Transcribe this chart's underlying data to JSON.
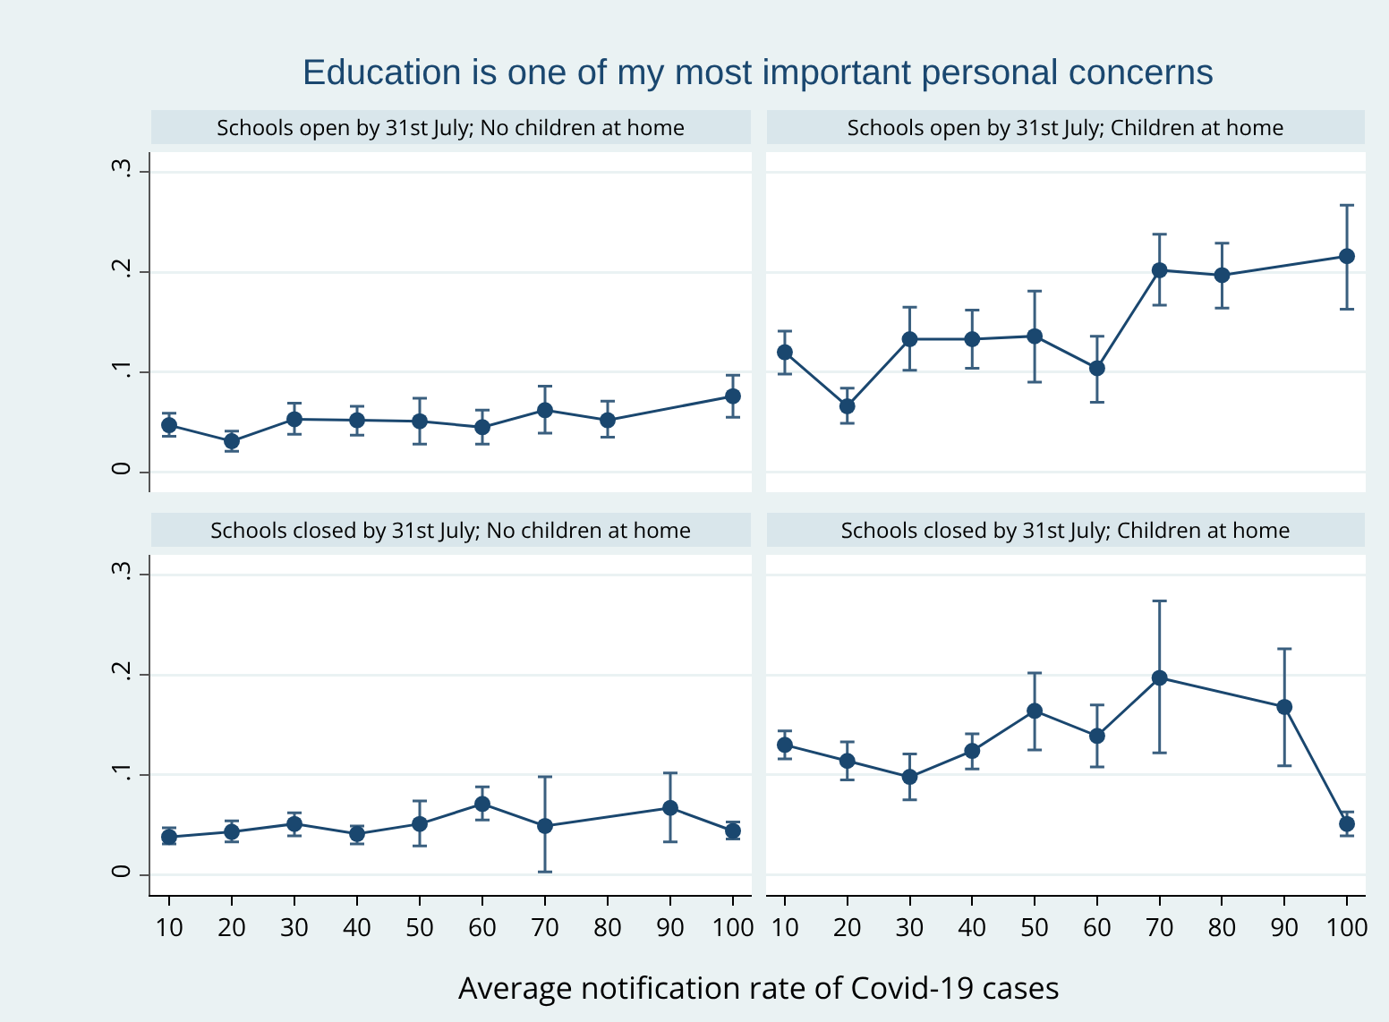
{
  "chart_data": [
    {
      "type": "line",
      "title": "Schools open by 31st July; No children at home",
      "annotations": [
        "Education is one of my most important personal concerns"
      ],
      "x": [
        10,
        20,
        30,
        40,
        50,
        60,
        70,
        80,
        100
      ],
      "values": [
        0.047,
        0.031,
        0.053,
        0.052,
        0.051,
        0.045,
        0.062,
        0.052,
        0.076
      ],
      "errors": [
        [
          0.036,
          0.059
        ],
        [
          0.021,
          0.041
        ],
        [
          0.038,
          0.069
        ],
        [
          0.037,
          0.066
        ],
        [
          0.028,
          0.074
        ],
        [
          0.028,
          0.062
        ],
        [
          0.039,
          0.086
        ],
        [
          0.035,
          0.071
        ],
        [
          0.055,
          0.097
        ]
      ],
      "color": "#1a476f",
      "marker": "circle",
      "xlim": [
        7,
        103
      ],
      "ylim": [
        -0.02,
        0.32
      ],
      "yticks": [
        0,
        {
          "value": 0.1,
          "label": ".1"
        },
        {
          "value": 0.2,
          "label": ".2"
        },
        {
          "value": 0.3,
          "label": ".3"
        }
      ],
      "grid": "y",
      "tick_labels": "y"
    },
    {
      "type": "line",
      "title": "Schools open by 31st July; Children at home",
      "x": [
        10,
        20,
        30,
        40,
        50,
        60,
        70,
        80,
        100
      ],
      "values": [
        0.12,
        0.066,
        0.133,
        0.133,
        0.136,
        0.104,
        0.202,
        0.197,
        0.216
      ],
      "errors": [
        [
          0.098,
          0.141
        ],
        [
          0.049,
          0.084
        ],
        [
          0.102,
          0.165
        ],
        [
          0.104,
          0.162
        ],
        [
          0.09,
          0.181
        ],
        [
          0.07,
          0.136
        ],
        [
          0.167,
          0.238
        ],
        [
          0.164,
          0.229
        ],
        [
          0.163,
          0.267
        ]
      ],
      "color": "#1a476f",
      "marker": "circle",
      "xlim": [
        7,
        103
      ],
      "ylim": [
        -0.02,
        0.32
      ],
      "yticks": [
        {
          "value": 0,
          "label": null
        },
        {
          "value": 0.1,
          "label": null
        },
        {
          "value": 0.2,
          "label": null
        },
        {
          "value": 0.3,
          "label": null
        }
      ],
      "grid": "y",
      "tick_labels": false
    },
    {
      "type": "line",
      "title": "Schools closed by 31st July; No children at home",
      "xlabel": "Average notification rate of Covid-19 cases",
      "x": [
        10,
        20,
        30,
        40,
        50,
        60,
        70,
        90,
        100
      ],
      "values": [
        0.038,
        0.043,
        0.051,
        0.041,
        0.051,
        0.071,
        0.049,
        0.067,
        0.044
      ],
      "errors": [
        [
          0.031,
          0.047
        ],
        [
          0.033,
          0.054
        ],
        [
          0.039,
          0.062
        ],
        [
          0.031,
          0.049
        ],
        [
          0.029,
          0.074
        ],
        [
          0.055,
          0.088
        ],
        [
          0.003,
          0.098
        ],
        [
          0.033,
          0.102
        ],
        [
          0.036,
          0.053
        ]
      ],
      "color": "#1a476f",
      "marker": "circle",
      "xlim": [
        7,
        103
      ],
      "xticks": [
        10,
        20,
        30,
        40,
        50,
        60,
        70,
        80,
        90,
        100
      ],
      "ylim": [
        -0.02,
        0.32
      ],
      "yticks": [
        0,
        {
          "value": 0.1,
          "label": ".1"
        },
        {
          "value": 0.2,
          "label": ".2"
        },
        {
          "value": 0.3,
          "label": ".3"
        }
      ],
      "grid": "y"
    },
    {
      "type": "line",
      "title": "Schools closed by 31st July; Children at home",
      "x": [
        10,
        20,
        30,
        40,
        50,
        60,
        70,
        90,
        100
      ],
      "values": [
        0.13,
        0.114,
        0.098,
        0.124,
        0.164,
        0.139,
        0.197,
        0.168,
        0.051
      ],
      "errors": [
        [
          0.116,
          0.144
        ],
        [
          0.095,
          0.133
        ],
        [
          0.075,
          0.121
        ],
        [
          0.106,
          0.141
        ],
        [
          0.125,
          0.202
        ],
        [
          0.108,
          0.17
        ],
        [
          0.122,
          0.274
        ],
        [
          0.109,
          0.226
        ],
        [
          0.039,
          0.063
        ]
      ],
      "color": "#1a476f",
      "marker": "circle",
      "xlim": [
        7,
        103
      ],
      "xticks": [
        10,
        20,
        30,
        40,
        50,
        60,
        70,
        80,
        90,
        100
      ],
      "ylim": [
        -0.02,
        0.32
      ],
      "yticks": [
        {
          "value": 0,
          "label": null
        },
        {
          "value": 0.1,
          "label": null
        },
        {
          "value": 0.2,
          "label": null
        },
        {
          "value": 0.3,
          "label": null
        }
      ],
      "grid": "y",
      "tick_labels": "x"
    }
  ]
}
